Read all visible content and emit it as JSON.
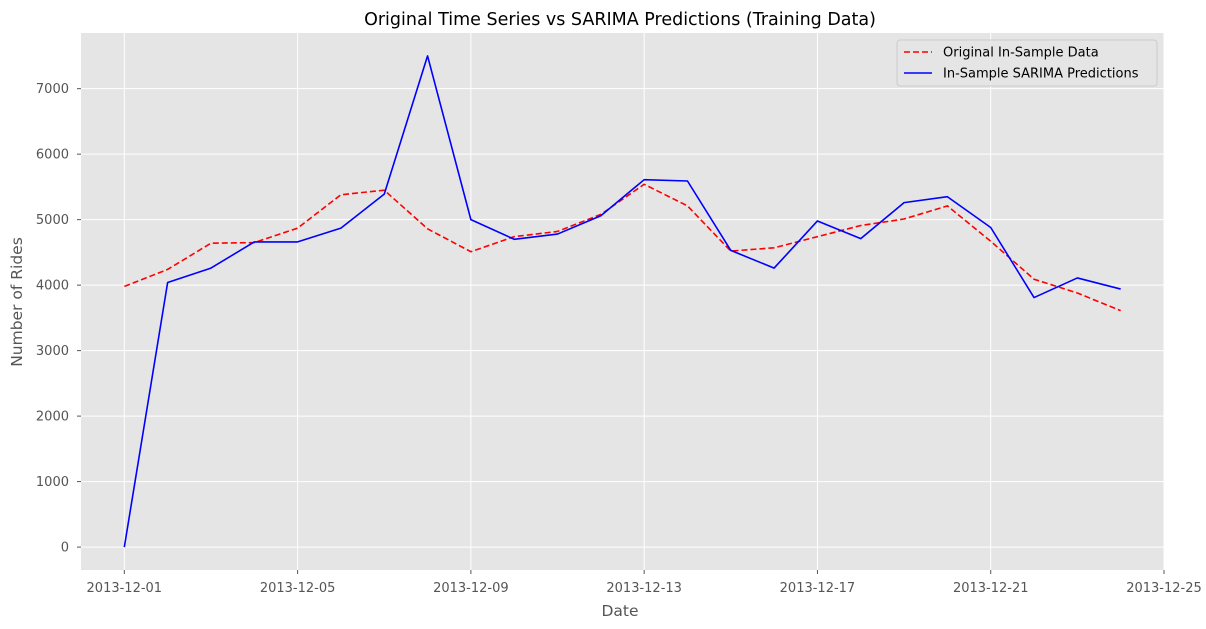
{
  "chart_data": {
    "type": "line",
    "title": "Original Time Series vs SARIMA Predictions (Training Data)",
    "xlabel": "Date",
    "ylabel": "Number of Rides",
    "x_dates": [
      "2013-12-01",
      "2013-12-02",
      "2013-12-03",
      "2013-12-04",
      "2013-12-05",
      "2013-12-06",
      "2013-12-07",
      "2013-12-08",
      "2013-12-09",
      "2013-12-10",
      "2013-12-11",
      "2013-12-12",
      "2013-12-13",
      "2013-12-14",
      "2013-12-15",
      "2013-12-16",
      "2013-12-17",
      "2013-12-18",
      "2013-12-19",
      "2013-12-20",
      "2013-12-21",
      "2013-12-22",
      "2013-12-23",
      "2013-12-24"
    ],
    "xlim": [
      "2013-11-30",
      "2013-12-25"
    ],
    "x_ticks": [
      "2013-12-01",
      "2013-12-05",
      "2013-12-09",
      "2013-12-13",
      "2013-12-17",
      "2013-12-21",
      "2013-12-25"
    ],
    "ylim": [
      -350,
      7850
    ],
    "y_ticks": [
      0,
      1000,
      2000,
      3000,
      4000,
      5000,
      6000,
      7000
    ],
    "grid": true,
    "legend_position": "top-right",
    "series": [
      {
        "name": "Original In-Sample Data",
        "color": "#ff0000",
        "style": "dashed",
        "values": [
          3980,
          4240,
          4640,
          4650,
          4870,
          5380,
          5450,
          4860,
          4510,
          4740,
          4820,
          5080,
          5540,
          5210,
          4520,
          4570,
          4740,
          4910,
          5010,
          5210,
          4670,
          4090,
          3880,
          3610
        ]
      },
      {
        "name": "In-Sample SARIMA Predictions",
        "color": "#0000ff",
        "style": "solid",
        "values": [
          0,
          4040,
          4260,
          4660,
          4660,
          4870,
          5390,
          7500,
          5000,
          4700,
          4780,
          5060,
          5610,
          5590,
          4530,
          4260,
          4980,
          4710,
          5260,
          5350,
          4880,
          3810,
          4110,
          3940
        ]
      }
    ]
  }
}
